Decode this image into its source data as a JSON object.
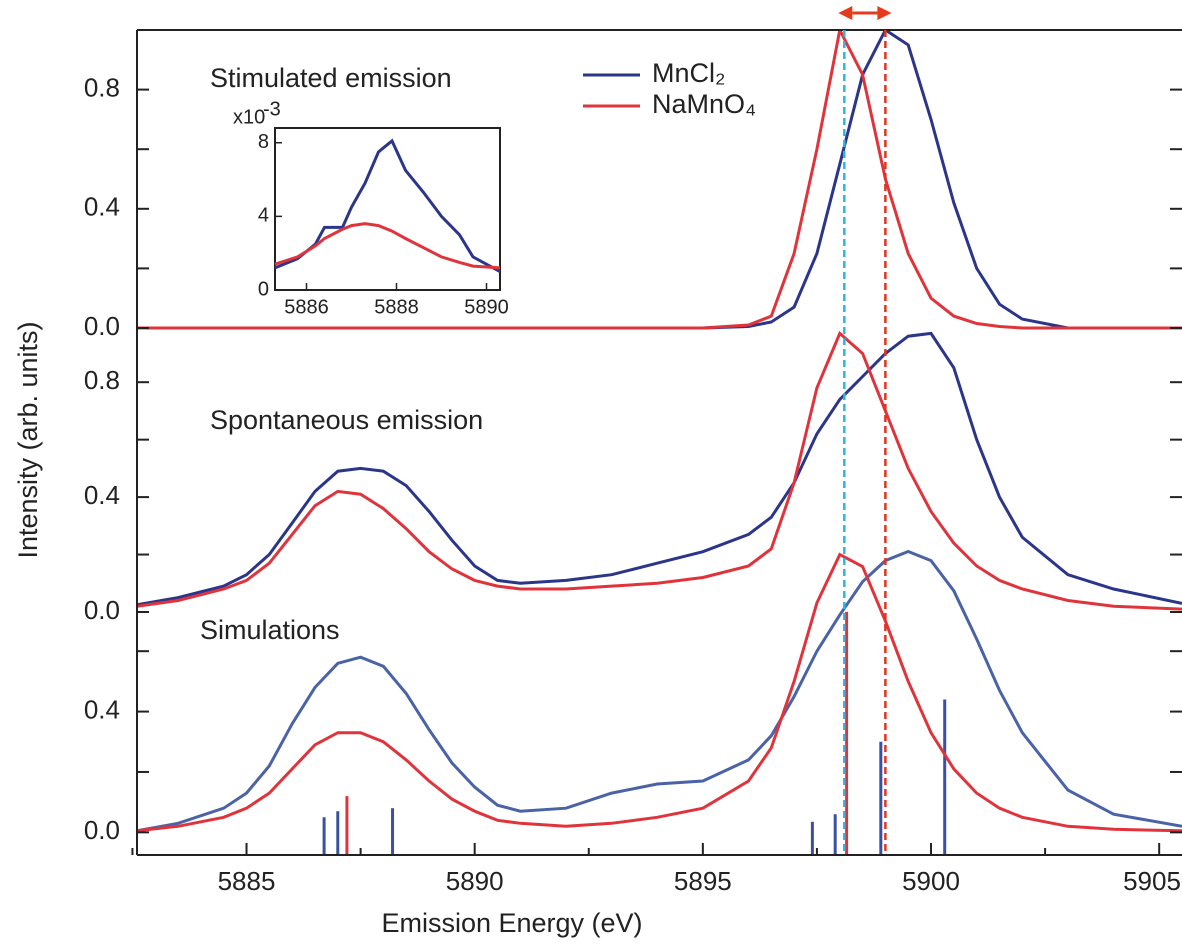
{
  "chart_data": {
    "type": "line",
    "xlabel": "Emission Energy  (eV)",
    "ylabel": "Intensity  (arb. units)",
    "xlim": [
      5882.6,
      5905.5
    ],
    "xticks": [
      5885,
      5890,
      5895,
      5900,
      5905
    ],
    "xminor": [
      5882.5,
      5887.5,
      5892.5,
      5897.5,
      5902.5
    ],
    "markers": [
      {
        "x": 5898.1,
        "color": "#2fb4e6"
      },
      {
        "x": 5899,
        "color": "#e0341c"
      }
    ],
    "arrow_color": "#e63a1c",
    "panels": [
      {
        "label": "Stimulated emission",
        "ylim": [
          0,
          1.0
        ],
        "yticks": [
          {
            "value": 0,
            "label": "0.0"
          },
          0.4,
          0.8
        ],
        "yminor": [
          0.2,
          0.6
        ],
        "x": [
          5882.6,
          5895,
          5896,
          5896.5,
          5897,
          5897.5,
          5898,
          5898.5,
          5899,
          5899.5,
          5900,
          5900.5,
          5901,
          5901.5,
          5902,
          5903,
          5905.5
        ],
        "series": [
          {
            "name": "MnCl₂",
            "color": "#2b368a",
            "values": [
              0,
              0,
              0.005,
              0.02,
              0.07,
              0.25,
              0.55,
              0.85,
              1.0,
              0.95,
              0.7,
              0.42,
              0.2,
              0.08,
              0.03,
              0,
              0
            ]
          },
          {
            "name": "NaMnO₄",
            "color": "#e0343c",
            "values": [
              0,
              0,
              0.01,
              0.04,
              0.25,
              0.6,
              1.0,
              0.85,
              0.5,
              0.25,
              0.1,
              0.04,
              0.015,
              0.005,
              0,
              0,
              0
            ]
          }
        ]
      },
      {
        "label": "Spontaneous emission",
        "ylim": [
          0,
          1.02
        ],
        "yticks": [
          {
            "value": 0,
            "label": "0.0"
          },
          0.4,
          0.8
        ],
        "yminor": [
          0.2,
          0.6
        ],
        "x": [
          5882.6,
          5883.5,
          5884.5,
          5885,
          5885.5,
          5886,
          5886.5,
          5887,
          5887.5,
          5888,
          5888.5,
          5889,
          5889.5,
          5890,
          5890.5,
          5891,
          5892,
          5893,
          5894,
          5895,
          5896,
          5896.5,
          5897,
          5897.5,
          5898,
          5898.5,
          5899,
          5899.5,
          5900,
          5900.5,
          5901,
          5901.5,
          5902,
          5903,
          5904,
          5905.5
        ],
        "series": [
          {
            "color": "#2b368a",
            "values": [
              0.025,
              0.05,
              0.09,
              0.13,
              0.2,
              0.31,
              0.42,
              0.49,
              0.5,
              0.49,
              0.44,
              0.35,
              0.25,
              0.16,
              0.11,
              0.1,
              0.11,
              0.13,
              0.17,
              0.21,
              0.27,
              0.33,
              0.45,
              0.62,
              0.74,
              0.82,
              0.9,
              0.96,
              0.97,
              0.85,
              0.6,
              0.4,
              0.26,
              0.13,
              0.08,
              0.03
            ]
          },
          {
            "color": "#e0343c",
            "values": [
              0.02,
              0.04,
              0.08,
              0.11,
              0.17,
              0.27,
              0.37,
              0.42,
              0.41,
              0.36,
              0.29,
              0.21,
              0.15,
              0.11,
              0.09,
              0.08,
              0.08,
              0.09,
              0.1,
              0.12,
              0.16,
              0.22,
              0.45,
              0.78,
              0.97,
              0.9,
              0.7,
              0.5,
              0.35,
              0.24,
              0.16,
              0.11,
              0.08,
              0.04,
              0.02,
              0.01
            ]
          }
        ]
      },
      {
        "label": "Simulations",
        "ylim": [
          -0.075,
          0.95
        ],
        "yticks": [
          {
            "value": 0,
            "label": "0.0"
          },
          0.4
        ],
        "yminor": [
          0.2,
          0.6
        ],
        "x": [
          5882.6,
          5883.5,
          5884.5,
          5885,
          5885.5,
          5886,
          5886.5,
          5887,
          5887.5,
          5888,
          5888.5,
          5889,
          5889.5,
          5890,
          5890.5,
          5891,
          5892,
          5893,
          5894,
          5895,
          5896,
          5896.5,
          5897,
          5897.5,
          5898,
          5898.5,
          5899,
          5899.5,
          5900,
          5900.5,
          5901,
          5901.5,
          5902,
          5903,
          5904,
          5905.5
        ],
        "series": [
          {
            "color": "#4a62a6",
            "values": [
              0.005,
              0.03,
              0.08,
              0.13,
              0.22,
              0.36,
              0.48,
              0.56,
              0.58,
              0.55,
              0.46,
              0.34,
              0.23,
              0.15,
              0.09,
              0.07,
              0.08,
              0.13,
              0.16,
              0.17,
              0.24,
              0.32,
              0.45,
              0.6,
              0.72,
              0.83,
              0.9,
              0.93,
              0.9,
              0.8,
              0.64,
              0.47,
              0.33,
              0.14,
              0.06,
              0.02
            ]
          },
          {
            "color": "#e0343c",
            "values": [
              0.005,
              0.02,
              0.05,
              0.08,
              0.13,
              0.21,
              0.29,
              0.33,
              0.33,
              0.3,
              0.24,
              0.17,
              0.11,
              0.07,
              0.04,
              0.03,
              0.02,
              0.03,
              0.05,
              0.08,
              0.17,
              0.28,
              0.5,
              0.76,
              0.92,
              0.88,
              0.7,
              0.5,
              0.33,
              0.21,
              0.13,
              0.08,
              0.05,
              0.02,
              0.01,
              0.005
            ]
          }
        ],
        "sticks": [
          {
            "color": "#3a50a0",
            "x": [
              5886.7,
              5887.0,
              5888.2,
              5897.4,
              5897.9,
              5898.9,
              5900.3
            ],
            "values": [
              0.05,
              0.07,
              0.08,
              0.035,
              0.06,
              0.3,
              0.44
            ]
          },
          {
            "color": "#e0343c",
            "x": [
              5887.2,
              5898.15
            ],
            "values": [
              0.12,
              0.73
            ]
          }
        ]
      }
    ],
    "inset": {
      "multiplier_base": "x10",
      "multiplier_exp": "-3",
      "xlim": [
        5885.3,
        5890.3
      ],
      "xticks": [
        5886,
        5888,
        5890
      ],
      "ylim": [
        0,
        8.8
      ],
      "yticks": [
        0,
        4,
        8
      ],
      "x": [
        5885.3,
        5885.8,
        5886.2,
        5886.4,
        5886.8,
        5887,
        5887.3,
        5887.6,
        5887.9,
        5888.2,
        5888.6,
        5889,
        5889.4,
        5889.7,
        5890.3
      ],
      "series": [
        {
          "color": "#2b368a",
          "values": [
            1.2,
            1.7,
            2.5,
            3.4,
            3.4,
            4.5,
            5.8,
            7.5,
            8.1,
            6.5,
            5.3,
            4.0,
            3.0,
            1.8,
            1.0
          ]
        },
        {
          "color": "#e0343c",
          "values": [
            1.4,
            1.8,
            2.4,
            2.8,
            3.3,
            3.5,
            3.6,
            3.5,
            3.2,
            2.8,
            2.3,
            1.8,
            1.5,
            1.3,
            1.2
          ]
        }
      ]
    }
  }
}
